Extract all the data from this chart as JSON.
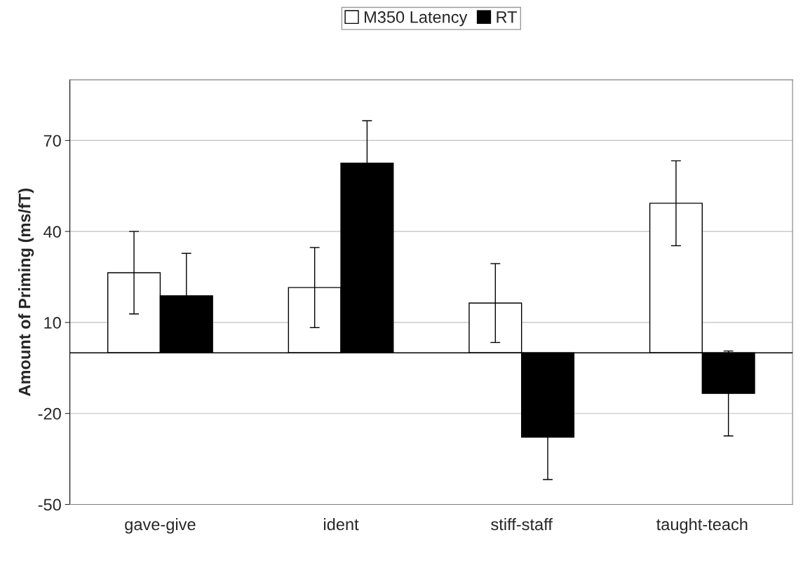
{
  "chart_data": {
    "type": "bar",
    "ylabel": "Amount of Priming (ms/fT)",
    "categories": [
      "gave-give",
      "ident",
      "stiff-staff",
      "taught-teach"
    ],
    "series": [
      {
        "name": "M350 Latency",
        "color": "#ffffff",
        "values": [
          26.4,
          21.5,
          16.4,
          49.3
        ],
        "errors": [
          13.6,
          13.2,
          13,
          14
        ]
      },
      {
        "name": "RT",
        "color": "#000000",
        "values": [
          18.8,
          62.5,
          -27.8,
          -13.4
        ],
        "errors": [
          14,
          14,
          14,
          14
        ]
      }
    ],
    "ylim": [
      -50,
      90
    ],
    "yticks": [
      -50,
      -20,
      10,
      40,
      70
    ],
    "grid": "y",
    "legend": "top",
    "ref_lines": [
      {
        "axis": "y",
        "value": 0,
        "color": "#000000"
      }
    ]
  }
}
